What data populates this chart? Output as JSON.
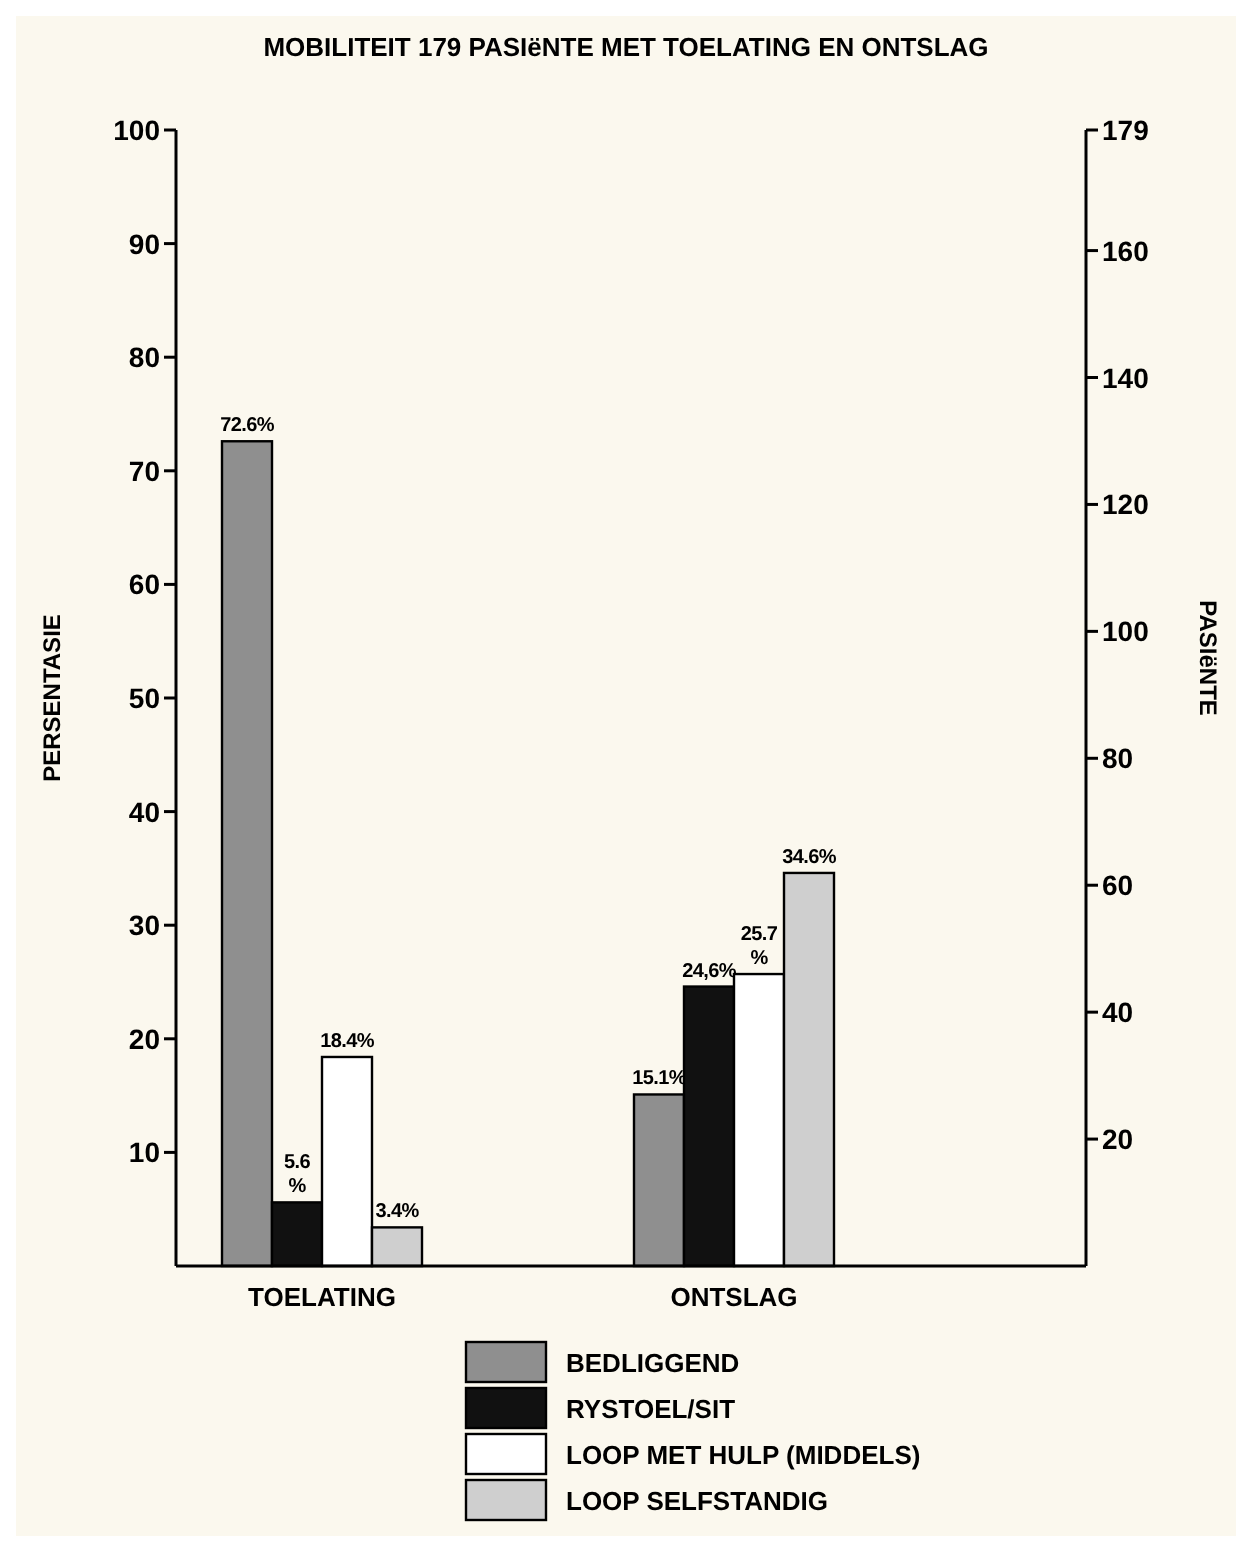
{
  "chart_data": {
    "type": "bar",
    "title": "MOBILITEIT 179 PASIëNTE MET TOELATING EN ONTSLAG",
    "ylabel": "PERSENTASIE",
    "y2label": "PASIëNTE",
    "categories": [
      "TOELATING",
      "ONTSLAG"
    ],
    "series": [
      {
        "name": "BEDLIGGEND",
        "color": "#8f8f8f",
        "values": [
          72.6,
          15.1
        ],
        "value_labels": [
          "72.6%",
          "15.1%"
        ]
      },
      {
        "name": "RYSTOEL/SIT",
        "color": "#111111",
        "values": [
          5.6,
          24.6
        ],
        "value_labels": [
          "5.6\n%",
          "24,6%"
        ]
      },
      {
        "name": "LOOP MET HULP (MIDDELS)",
        "color": "#ffffff",
        "values": [
          18.4,
          25.7
        ],
        "value_labels": [
          "18.4%",
          "25.7\n%"
        ]
      },
      {
        "name": "LOOP SELFSTANDIG",
        "color": "#cfcfcf",
        "values": [
          3.4,
          34.6
        ],
        "value_labels": [
          "3.4%",
          "34.6%"
        ]
      }
    ],
    "ylim": [
      0,
      100
    ],
    "yticks": [
      10,
      20,
      30,
      40,
      50,
      60,
      70,
      80,
      90,
      100
    ],
    "y2lim": [
      0,
      179
    ],
    "y2ticks": [
      20,
      40,
      60,
      80,
      100,
      120,
      140,
      160,
      179
    ],
    "legend": "bottom"
  }
}
